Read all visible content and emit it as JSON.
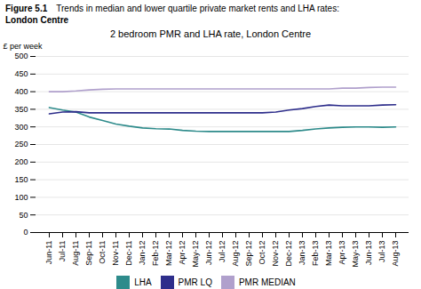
{
  "chart_data": {
    "type": "line",
    "title": "2 bedroom PMR and LHA rate, London Centre",
    "annotations": [
      "Figure 5.1",
      "Trends in median and lower quartile private market rents and LHA rates:",
      "London Centre"
    ],
    "ylabel": "£ per week",
    "categories": [
      "Jun-11",
      "Jul-11",
      "Aug-11",
      "Sep-11",
      "Oct-11",
      "Nov-11",
      "Dec-11",
      "Jan-12",
      "Feb-12",
      "Mar-12",
      "Apr-12",
      "May-12",
      "Jun-12",
      "Jul-12",
      "Aug-12",
      "Sep-12",
      "Oct-12",
      "Nov-12",
      "Dec-12",
      "Jan-13",
      "Feb-13",
      "Mar-13",
      "Apr-13",
      "May-13",
      "Jun-13",
      "Jul-13",
      "Aug-13"
    ],
    "series": [
      {
        "name": "LHA",
        "color": "#2e8b8b",
        "values": [
          355,
          348,
          342,
          328,
          318,
          308,
          302,
          297,
          295,
          294,
          290,
          288,
          287,
          287,
          287,
          287,
          287,
          287,
          287,
          290,
          294,
          297,
          299,
          300,
          300,
          299,
          300
        ]
      },
      {
        "name": "PMR LQ",
        "color": "#2e2e8b",
        "values": [
          337,
          342,
          343,
          340,
          340,
          340,
          340,
          340,
          340,
          340,
          340,
          340,
          340,
          340,
          340,
          340,
          340,
          342,
          348,
          352,
          358,
          362,
          360,
          360,
          360,
          362,
          363
        ]
      },
      {
        "name": "PMR MEDIAN",
        "color": "#b0a0cc",
        "values": [
          400,
          400,
          402,
          405,
          407,
          408,
          408,
          408,
          408,
          408,
          408,
          408,
          408,
          408,
          408,
          408,
          408,
          408,
          408,
          408,
          408,
          408,
          410,
          410,
          412,
          413,
          413
        ]
      }
    ],
    "ylim": [
      0,
      500
    ],
    "yticks": [
      0,
      50,
      100,
      150,
      200,
      250,
      300,
      350,
      400,
      450,
      500
    ],
    "grid": true,
    "legend": "bottom"
  }
}
